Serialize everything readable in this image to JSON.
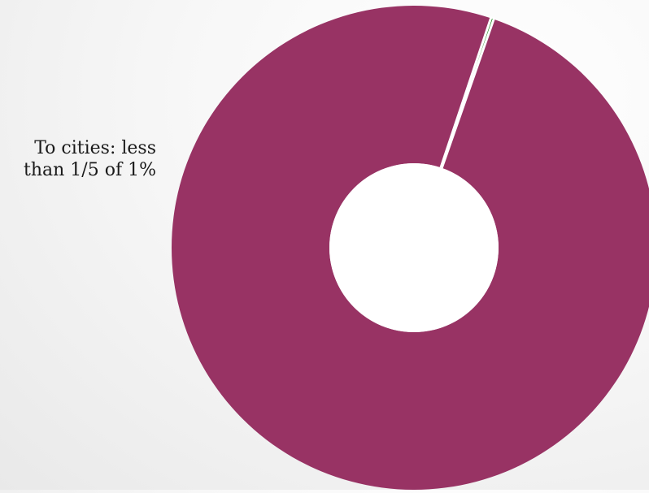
{
  "chart_data": {
    "type": "pie",
    "variant": "donut",
    "slices": [
      {
        "label_lines": [
          "To cities: less",
          "than 1/5 of 1%"
        ],
        "value": 0.2,
        "color": "#0a7d0a"
      },
      {
        "label_lines": [],
        "value": 99.8,
        "color": "#983364"
      }
    ],
    "unit": "%",
    "start_angle_deg": -71.5,
    "hole_color": "#ffffff",
    "separator_color": "#ffffff",
    "title": "",
    "legend": "none"
  }
}
